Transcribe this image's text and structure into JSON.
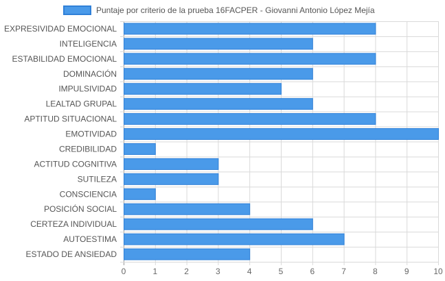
{
  "chart_data": {
    "type": "bar",
    "orientation": "horizontal",
    "categories": [
      "EXPRESIVIDAD EMOCIONAL",
      "INTELIGENCIA",
      "ESTABILIDAD EMOCIONAL",
      "DOMINACIÓN",
      "IMPULSIVIDAD",
      "LEALTAD GRUPAL",
      "APTITUD SITUACIONAL",
      "EMOTIVIDAD",
      "CREDIBILIDAD",
      "ACTITUD COGNITIVA",
      "SUTILEZA",
      "CONSCIENCIA",
      "POSICIÓN SOCIAL",
      "CERTEZA INDIVIDUAL",
      "AUTOESTIMA",
      "ESTADO DE ANSIEDAD"
    ],
    "series": [
      {
        "name": "Puntaje por criterio de la prueba 16FACPER - Giovanni Antonio López Mejía",
        "values": [
          8,
          6,
          8,
          6,
          5,
          6,
          8,
          10,
          1,
          3,
          3,
          1,
          4,
          6,
          7,
          4
        ]
      }
    ],
    "xlim": [
      0,
      10
    ],
    "xticks": [
      0,
      1,
      2,
      3,
      4,
      5,
      6,
      7,
      8,
      9,
      10
    ],
    "grid": true,
    "legend_position": "top",
    "colors": {
      "bar_fill": "#4a9ae9",
      "bar_stroke": "#2f80d8",
      "grid": "#d9d9d9",
      "axis": "#999999"
    }
  }
}
